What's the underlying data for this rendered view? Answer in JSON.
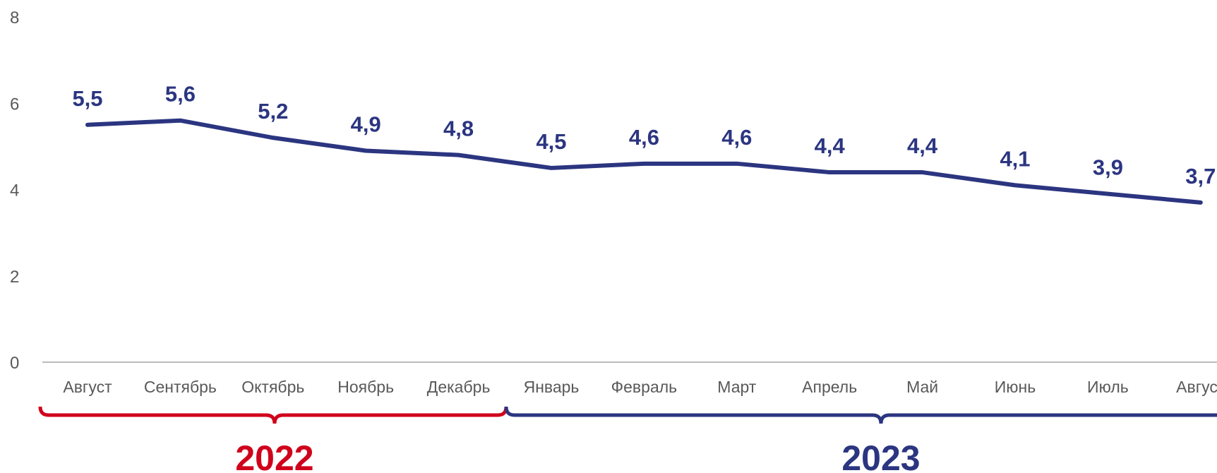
{
  "chart_data": {
    "type": "line",
    "categories": [
      "Август",
      "Сентябрь",
      "Октябрь",
      "Ноябрь",
      "Декабрь",
      "Январь",
      "Февраль",
      "Март",
      "Апрель",
      "Май",
      "Июнь",
      "Июль",
      "Август"
    ],
    "series": [
      {
        "color": "#2b3580",
        "values": [
          5.5,
          5.6,
          5.2,
          4.9,
          4.8,
          4.5,
          4.6,
          4.6,
          4.4,
          4.4,
          4.1,
          3.9,
          3.7
        ],
        "value_labels": [
          "5,5",
          "5,6",
          "5,2",
          "4,9",
          "4,8",
          "4,5",
          "4,6",
          "4,6",
          "4,4",
          "4,4",
          "4,1",
          "3,9",
          "3,7"
        ]
      }
    ],
    "ylim": [
      0,
      8
    ],
    "yticks": [
      0,
      2,
      4,
      6,
      8
    ],
    "groups": [
      {
        "label": "2022",
        "color": "#d0021b"
      },
      {
        "label": "2023",
        "color": "#2b3580"
      }
    ]
  }
}
